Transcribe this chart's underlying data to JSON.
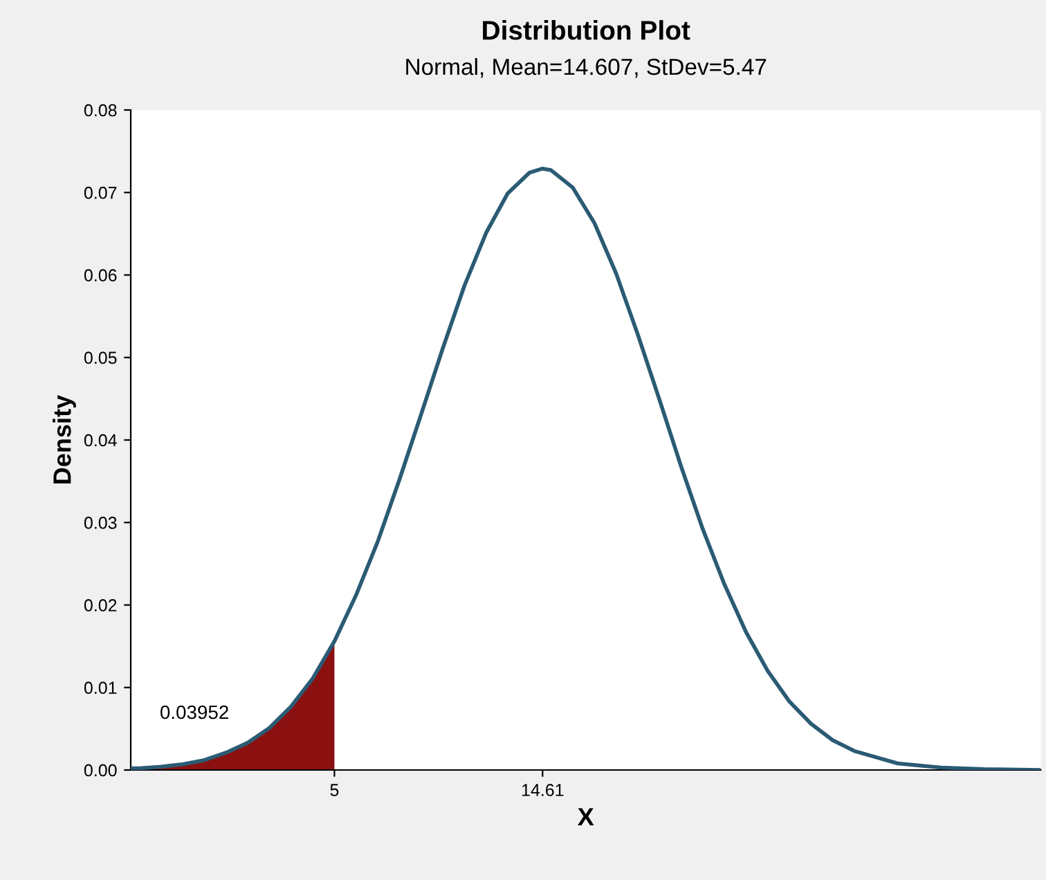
{
  "chart_data": {
    "type": "line",
    "title": "Distribution Plot",
    "subtitle": "Normal, Mean=14.607, StDev=5.47",
    "xlabel": "X",
    "ylabel": "Density",
    "series": [
      {
        "color": "#2b5b74",
        "x": [
          -4.4,
          -4,
          -3,
          -2,
          -1,
          0,
          1,
          2,
          3,
          4,
          5,
          6,
          7,
          8,
          9,
          10,
          11,
          12,
          13,
          14,
          14.607,
          15,
          16,
          17,
          18,
          19,
          20,
          21,
          22,
          23,
          24,
          25,
          26,
          27,
          28,
          29,
          31,
          33,
          35,
          37.6
        ],
        "values": [
          0.0002,
          0.0002,
          0.0004,
          0.0007,
          0.0012,
          0.0021,
          0.0033,
          0.0051,
          0.0077,
          0.0111,
          0.0156,
          0.0212,
          0.0277,
          0.0352,
          0.0431,
          0.0511,
          0.0587,
          0.0651,
          0.0699,
          0.0724,
          0.0729,
          0.0727,
          0.0706,
          0.0663,
          0.0602,
          0.0528,
          0.0449,
          0.0368,
          0.0292,
          0.0225,
          0.0167,
          0.012,
          0.0083,
          0.0056,
          0.0036,
          0.0023,
          0.0008,
          0.0003,
          0.0001,
          0.0
        ]
      },
      {
        "type": "area",
        "color": "#8b1010",
        "x": [
          -4.4,
          -4,
          -3,
          -2,
          -1,
          0,
          1,
          2,
          3,
          4,
          5
        ],
        "values": [
          0.0002,
          0.0002,
          0.0004,
          0.0007,
          0.0012,
          0.0021,
          0.0033,
          0.0051,
          0.0077,
          0.0111,
          0.0156
        ]
      }
    ],
    "annotations": [
      "0.03952"
    ],
    "xlim": [
      -4.4,
      37.6
    ],
    "xticks": [
      5,
      {
        "value": 14.607,
        "label": "14.61"
      }
    ],
    "ylim": [
      0,
      0.08
    ],
    "yticks": [
      {
        "value": 0,
        "label": "0.00"
      },
      {
        "value": 0.01,
        "label": "0.01"
      },
      {
        "value": 0.02,
        "label": "0.02"
      },
      {
        "value": 0.03,
        "label": "0.03"
      },
      {
        "value": 0.04,
        "label": "0.04"
      },
      {
        "value": 0.05,
        "label": "0.05"
      },
      {
        "value": 0.06,
        "label": "0.06"
      },
      {
        "value": 0.07,
        "label": "0.07"
      },
      {
        "value": 0.08,
        "label": "0.08"
      }
    ],
    "grid": false,
    "legend": false
  }
}
